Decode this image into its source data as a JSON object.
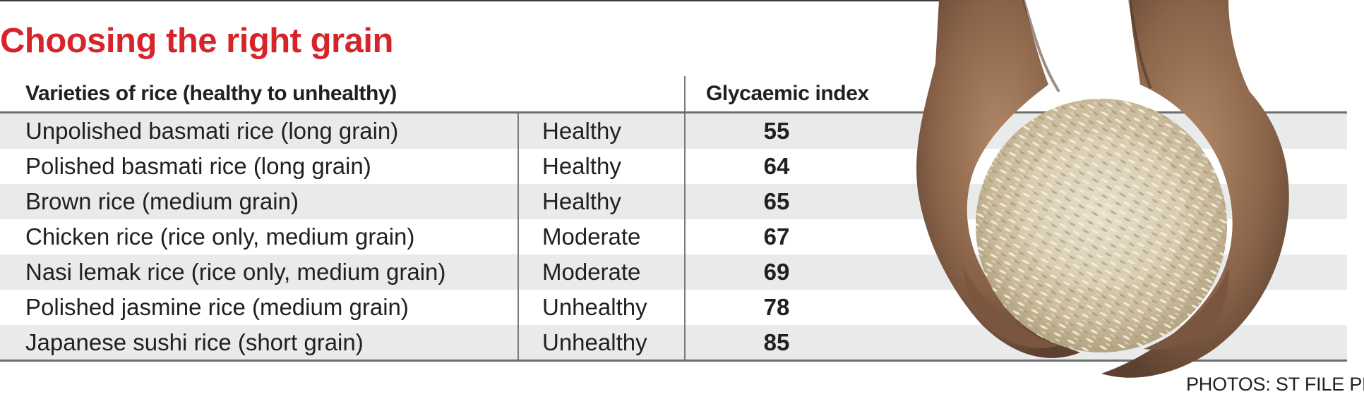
{
  "title": "Choosing the right grain",
  "table": {
    "headers": {
      "variety": "Varieties of rice (healthy to unhealthy)",
      "rating": "",
      "gi": "Glycaemic index"
    },
    "rows": [
      {
        "variety": "Unpolished basmati rice (long grain)",
        "rating": "Healthy",
        "gi": "55"
      },
      {
        "variety": "Polished basmati rice (long grain)",
        "rating": "Healthy",
        "gi": "64"
      },
      {
        "variety": "Brown rice (medium grain)",
        "rating": "Healthy",
        "gi": "65"
      },
      {
        "variety": "Chicken rice (rice only, medium grain)",
        "rating": "Moderate",
        "gi": "67"
      },
      {
        "variety": "Nasi lemak rice (rice only, medium grain)",
        "rating": "Moderate",
        "gi": "69"
      },
      {
        "variety": "Polished jasmine rice (medium grain)",
        "rating": "Unhealthy",
        "gi": "78"
      },
      {
        "variety": "Japanese sushi rice (short grain)",
        "rating": "Unhealthy",
        "gi": "85"
      }
    ]
  },
  "photo": {
    "icon": "hands-holding-rice-photo",
    "credit": "PHOTOS: ST FILE PH"
  },
  "colors": {
    "title": "#d7242a",
    "row_shade": "#e9eaea",
    "rule": "#6e6e6e",
    "text": "#231f20"
  }
}
